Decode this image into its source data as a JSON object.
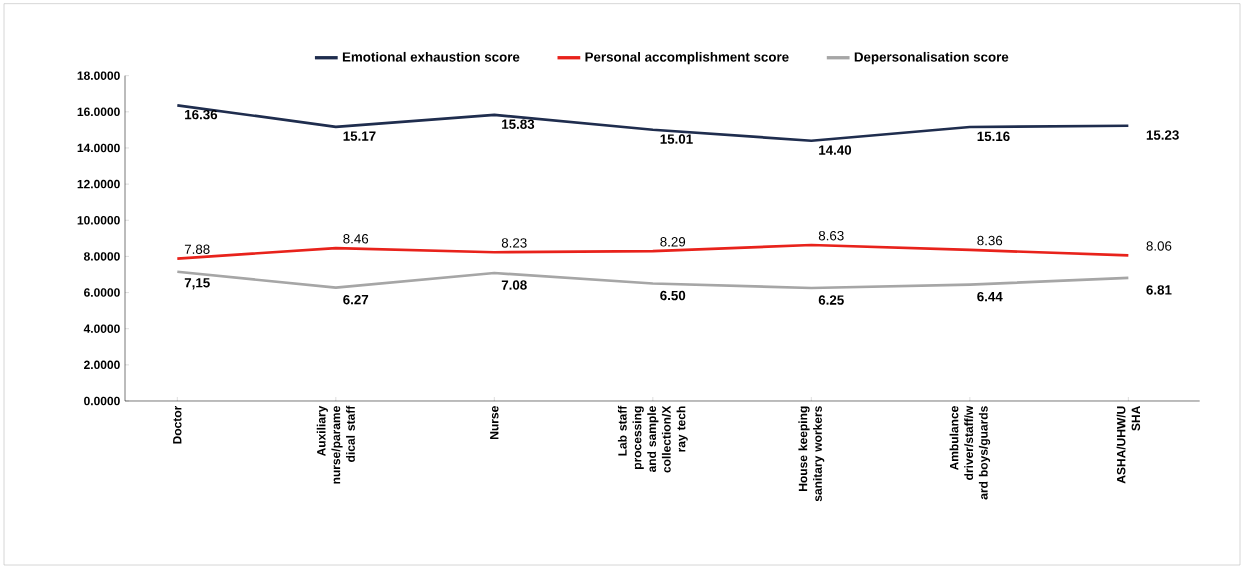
{
  "chart_data": {
    "type": "line",
    "categories": [
      "Doctor",
      "Auxiliary nurse/parame dical staff",
      "Nurse",
      "Lab staff processing and sample collection/X ray tech",
      "House keeping sanitary workers",
      "Ambulance driver/staff/w ard boys/guards",
      "ASHA/UHW/U SHA"
    ],
    "series": [
      {
        "name": "Emotional exhaustion score",
        "color": "#1f2d4e",
        "values": [
          16.36,
          15.17,
          15.83,
          15.01,
          14.4,
          15.16,
          15.23
        ],
        "value_labels": [
          "16.36",
          "15.17",
          "15.83",
          "15.01",
          "14.40",
          "15.16",
          "15.23"
        ]
      },
      {
        "name": "Personal accomplishment score",
        "color": "#e8221b",
        "values": [
          7.88,
          8.46,
          8.23,
          8.29,
          8.63,
          8.36,
          8.06
        ],
        "value_labels": [
          "7.88",
          "8.46",
          "8.23",
          "8.29",
          "8.63",
          "8.36",
          "8.06"
        ]
      },
      {
        "name": "Depersonalisation score",
        "color": "#a6a6a6",
        "values": [
          7.15,
          6.27,
          7.08,
          6.5,
          6.25,
          6.44,
          6.81
        ],
        "value_labels": [
          "7,15",
          "6.27",
          "7.08",
          "6.50",
          "6.25",
          "6.44",
          "6.81"
        ]
      }
    ],
    "ylim": [
      0,
      18
    ],
    "yticks": [
      {
        "value": 0,
        "label": "0.0000"
      },
      {
        "value": 2,
        "label": "2.0000"
      },
      {
        "value": 4,
        "label": "4.0000"
      },
      {
        "value": 6,
        "label": "6.0000"
      },
      {
        "value": 8,
        "label": "8.0000"
      },
      {
        "value": 10,
        "label": "10.0000"
      },
      {
        "value": 12,
        "label": "12.0000"
      },
      {
        "value": 14,
        "label": "14.0000"
      },
      {
        "value": 16,
        "label": "16.0000"
      },
      {
        "value": 18,
        "label": "18.0000"
      }
    ],
    "grid": false,
    "legend": "top",
    "marker": "none",
    "line_style": "solid"
  }
}
